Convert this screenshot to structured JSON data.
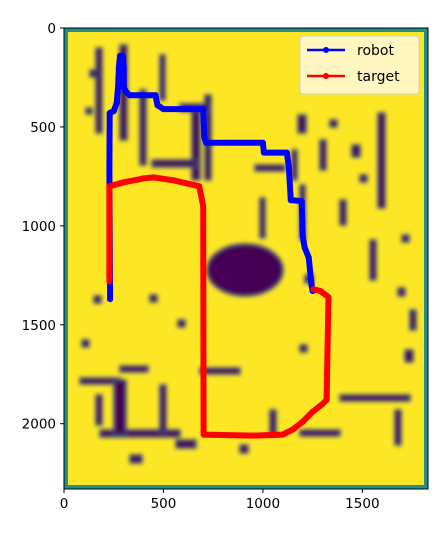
{
  "chart_data": {
    "type": "line",
    "title": "",
    "xlabel": "",
    "ylabel": "",
    "xlim": [
      0,
      1830
    ],
    "ylim": [
      2330,
      0
    ],
    "y_inverted": true,
    "grid": false,
    "legend_position": "top-right",
    "background_image": "occupancy map (viridis colormap: yellow free space, dark purple obstacles)",
    "x_ticks": [
      {
        "value": 0,
        "label": "0"
      },
      {
        "value": 500,
        "label": "500"
      },
      {
        "value": 1000,
        "label": "1000"
      },
      {
        "value": 1500,
        "label": "1500"
      }
    ],
    "y_ticks": [
      {
        "value": 0,
        "label": "0"
      },
      {
        "value": 500,
        "label": "500"
      },
      {
        "value": 1000,
        "label": "1000"
      },
      {
        "value": 1500,
        "label": "1500"
      },
      {
        "value": 2000,
        "label": "2000"
      }
    ],
    "series": [
      {
        "name": "robot",
        "color": "#0000ff",
        "points": [
          [
            232,
            1370
          ],
          [
            230,
            1000
          ],
          [
            228,
            700
          ],
          [
            230,
            430
          ],
          [
            250,
            420
          ],
          [
            265,
            380
          ],
          [
            272,
            300
          ],
          [
            276,
            200
          ],
          [
            282,
            140
          ],
          [
            295,
            140
          ],
          [
            300,
            200
          ],
          [
            300,
            300
          ],
          [
            310,
            320
          ],
          [
            330,
            340
          ],
          [
            460,
            340
          ],
          [
            470,
            390
          ],
          [
            500,
            410
          ],
          [
            700,
            410
          ],
          [
            705,
            550
          ],
          [
            715,
            580
          ],
          [
            1000,
            580
          ],
          [
            1005,
            630
          ],
          [
            1120,
            630
          ],
          [
            1130,
            700
          ],
          [
            1140,
            870
          ],
          [
            1195,
            875
          ],
          [
            1200,
            1050
          ],
          [
            1210,
            1110
          ],
          [
            1230,
            1160
          ],
          [
            1245,
            1300
          ],
          [
            1250,
            1330
          ]
        ]
      },
      {
        "name": "target",
        "color": "#ff0000",
        "points": [
          [
            228,
            1280
          ],
          [
            228,
            800
          ],
          [
            300,
            780
          ],
          [
            400,
            760
          ],
          [
            450,
            755
          ],
          [
            550,
            770
          ],
          [
            680,
            800
          ],
          [
            700,
            900
          ],
          [
            702,
            2055
          ],
          [
            950,
            2060
          ],
          [
            1100,
            2055
          ],
          [
            1150,
            2030
          ],
          [
            1200,
            1990
          ],
          [
            1250,
            1940
          ],
          [
            1300,
            1900
          ],
          [
            1320,
            1880
          ],
          [
            1330,
            1360
          ],
          [
            1290,
            1330
          ],
          [
            1255,
            1320
          ]
        ]
      }
    ]
  }
}
